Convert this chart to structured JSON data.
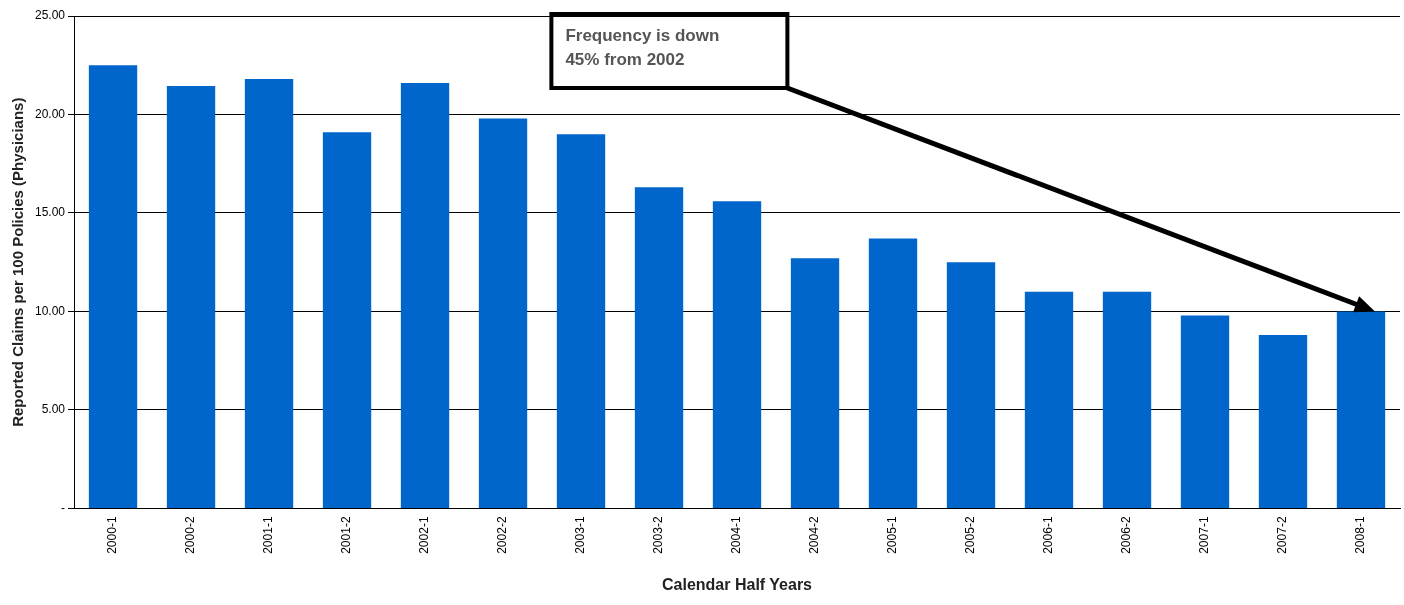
{
  "chart_data": {
    "type": "bar",
    "xlabel": "Calendar Half Years",
    "ylabel": "Reported Claims per 100 Policies (Physicians)",
    "categories": [
      "2000-1",
      "2000-2",
      "2001-1",
      "2001-2",
      "2002-1",
      "2002-2",
      "2003-1",
      "2003-2",
      "2004-1",
      "2004-2",
      "2005-1",
      "2005-2",
      "2006-1",
      "2006-2",
      "2007-1",
      "2007-2",
      "2008-1"
    ],
    "values": [
      22.5,
      21.45,
      21.8,
      19.1,
      21.6,
      19.8,
      19.0,
      16.3,
      15.6,
      12.7,
      13.7,
      12.5,
      11.0,
      11.0,
      9.8,
      8.8,
      10.0
    ],
    "color": "#0066cc",
    "ylim": [
      0,
      25
    ],
    "yticks": [
      {
        "value": 0,
        "label": "-"
      },
      {
        "value": 5,
        "label": "5.00"
      },
      {
        "value": 10,
        "label": "10.00"
      },
      {
        "value": 15,
        "label": "15.00"
      },
      {
        "value": 20,
        "label": "20.00"
      },
      {
        "value": 25,
        "label": "25.00"
      }
    ],
    "grid": "y",
    "legend": false,
    "annotations": [
      "Frequency is down 45% from 2002"
    ]
  }
}
